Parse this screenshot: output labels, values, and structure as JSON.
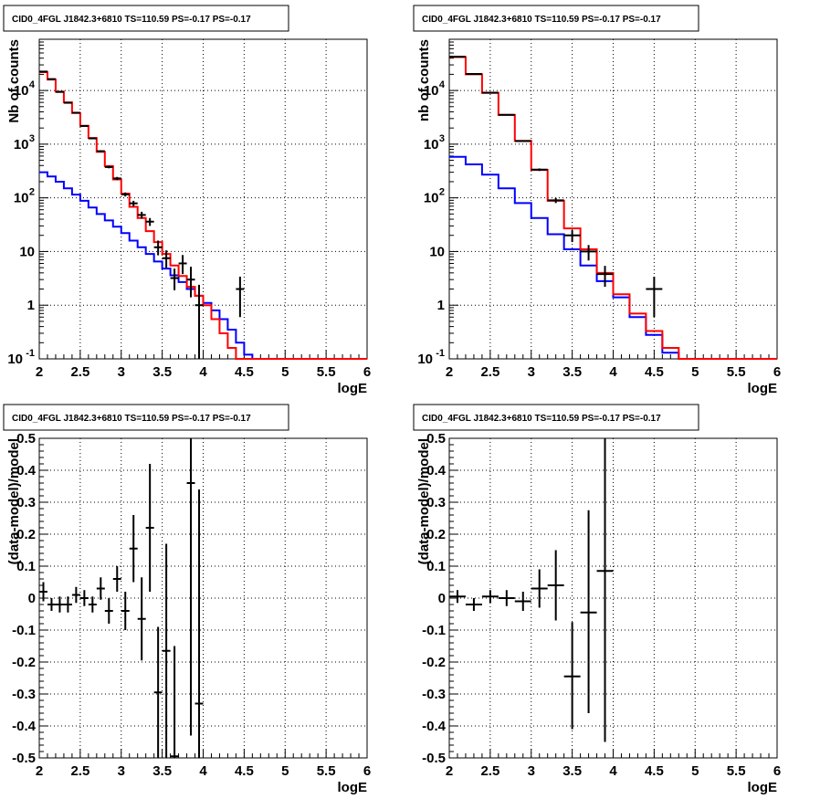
{
  "panels": [
    {
      "title": "CID0_4FGL J1842.3+6810 TS=110.59 PS=-0.17 PS=-0.17"
    },
    {
      "title": "CID0_4FGL J1842.3+6810 TS=110.59 PS=-0.17 PS=-0.17"
    },
    {
      "title": "CID0_4FGL J1842.3+6810 TS=110.59 PS=-0.17 PS=-0.17"
    },
    {
      "title": "CID0_4FGL J1842.3+6810 TS=110.59 PS=-0.17 PS=-0.17"
    }
  ],
  "colors": {
    "total_model": "#ff0000",
    "component_model": "#0000ff",
    "data": "#000000",
    "grid": "#000000",
    "title_border": "#000000"
  },
  "chart_data": [
    {
      "type": "line",
      "title": "CID0_4FGL J1842.3+6810 TS=110.59 PS=-0.17 PS=-0.17",
      "xlabel": "logE",
      "ylabel": "Nb of counts",
      "xlim": [
        2,
        6
      ],
      "ylim": [
        0.1,
        90000
      ],
      "yscale": "log",
      "grid": true,
      "x_ticks": [
        "2",
        "2.5",
        "3",
        "3.5",
        "4",
        "4.5",
        "5",
        "5.5",
        "6"
      ],
      "y_ticks": [
        "10^-1",
        "1",
        "10",
        "10^2",
        "10^3",
        "10^4"
      ],
      "bin_edges": [
        2.0,
        2.1,
        2.2,
        2.3,
        2.4,
        2.5,
        2.6,
        2.7,
        2.8,
        2.9,
        3.0,
        3.1,
        3.2,
        3.3,
        3.4,
        3.5,
        3.6,
        3.7,
        3.8,
        3.9,
        4.0,
        4.1,
        4.2,
        4.3,
        4.4,
        4.5,
        4.6,
        4.7,
        4.8,
        4.9,
        5.0,
        5.1,
        5.2,
        5.3,
        5.4,
        5.5,
        5.6,
        5.7,
        5.8,
        5.9,
        6.0
      ],
      "series": [
        {
          "kind": "step",
          "values": [
            22000,
            16000,
            9500,
            6000,
            3800,
            2200,
            1300,
            720,
            390,
            220,
            120,
            68,
            42,
            24,
            15,
            9,
            5.5,
            3.5,
            2.2,
            1.5,
            1,
            0.55,
            0.3,
            0.16,
            0.1,
            0.1,
            0.1,
            0.1,
            0.1,
            0.1,
            0.1,
            0.1,
            0.1,
            0.1,
            0.1,
            0.1,
            0.1,
            0.1,
            0.1,
            0.1
          ]
        },
        {
          "kind": "step",
          "values": [
            300,
            250,
            200,
            150,
            115,
            88,
            66,
            50,
            38,
            29,
            22,
            16,
            12,
            9,
            6.5,
            4.8,
            3.6,
            2.7,
            2,
            1.5,
            1.1,
            0.8,
            0.55,
            0.35,
            0.2,
            0.12,
            0.1,
            0.1,
            0.1,
            0.1,
            0.1,
            0.1,
            0.1,
            0.1,
            0.1,
            0.1,
            0.1,
            0.1,
            0.1,
            0.1
          ]
        },
        {
          "kind": "points",
          "x": [
            2.05,
            2.15,
            2.25,
            2.35,
            2.45,
            2.55,
            2.65,
            2.75,
            2.85,
            2.95,
            3.05,
            3.15,
            3.25,
            3.35,
            3.45,
            3.55,
            3.65,
            3.75,
            3.85,
            3.95,
            4.45
          ],
          "y": [
            22500,
            16300,
            9400,
            5900,
            3850,
            2180,
            1280,
            740,
            375,
            230,
            116,
            79,
            48,
            36,
            12,
            7.5,
            3.2,
            6,
            3,
            1,
            2
          ],
          "ylo": [
            22300,
            16100,
            9300,
            5820,
            3790,
            2130,
            1240,
            710,
            355,
            215,
            106,
            70,
            41,
            30,
            8.5,
            5,
            1.9,
            3.8,
            1.4,
            0.09,
            0.6
          ],
          "yhi": [
            22800,
            16500,
            9600,
            6000,
            3910,
            2230,
            1320,
            770,
            395,
            245,
            126,
            88,
            55,
            42,
            16,
            10.5,
            4.8,
            8.6,
            5.2,
            2.4,
            3.4
          ]
        }
      ]
    },
    {
      "type": "line",
      "title": "CID0_4FGL J1842.3+6810 TS=110.59 PS=-0.17 PS=-0.17",
      "xlabel": "logE",
      "ylabel": "nb of counts",
      "xlim": [
        2,
        6
      ],
      "ylim": [
        0.1,
        90000
      ],
      "yscale": "log",
      "grid": true,
      "x_ticks": [
        "2",
        "2.5",
        "3",
        "3.5",
        "4",
        "4.5",
        "5",
        "5.5",
        "6"
      ],
      "y_ticks": [
        "10^-1",
        "1",
        "10",
        "10^2",
        "10^3",
        "10^4"
      ],
      "bin_edges": [
        2.0,
        2.2,
        2.4,
        2.6,
        2.8,
        3.0,
        3.2,
        3.4,
        3.6,
        3.8,
        4.0,
        4.2,
        4.4,
        4.6,
        4.8,
        5.0,
        5.2,
        5.4,
        5.6,
        5.8,
        6.0
      ],
      "series": [
        {
          "kind": "step",
          "values": [
            42000,
            20000,
            9000,
            3500,
            1150,
            330,
            88,
            27,
            11,
            4,
            1.6,
            0.7,
            0.33,
            0.16,
            0.1,
            0.1,
            0.1,
            0.1,
            0.1,
            0.1
          ]
        },
        {
          "kind": "step",
          "values": [
            580,
            420,
            270,
            150,
            80,
            42,
            21,
            11,
            5.5,
            2.8,
            1.4,
            0.6,
            0.28,
            0.13,
            0.1,
            0.1,
            0.1,
            0.1,
            0.1,
            0.1
          ]
        },
        {
          "kind": "points",
          "x": [
            2.1,
            2.3,
            2.5,
            2.7,
            2.9,
            3.1,
            3.3,
            3.5,
            3.7,
            3.9,
            4.5
          ],
          "y": [
            42500,
            20300,
            9100,
            3520,
            1140,
            335,
            90,
            20,
            10,
            3.8,
            2
          ],
          "ylo": [
            42300,
            20100,
            9000,
            3470,
            1110,
            317,
            80,
            15,
            6.8,
            2.2,
            0.6
          ],
          "yhi": [
            42700,
            20500,
            9200,
            3570,
            1170,
            353,
            100,
            25,
            13.2,
            5.4,
            3.4
          ]
        }
      ]
    },
    {
      "type": "scatter",
      "title": "CID0_4FGL J1842.3+6810 TS=110.59 PS=-0.17 PS=-0.17",
      "xlabel": "logE",
      "ylabel": "(data-model)/model",
      "xlim": [
        2,
        6
      ],
      "ylim": [
        -0.5,
        0.5
      ],
      "grid": true,
      "x_ticks": [
        "2",
        "2.5",
        "3",
        "3.5",
        "4",
        "4.5",
        "5",
        "5.5",
        "6"
      ],
      "y_ticks": [
        "-0.5",
        "-0.4",
        "-0.3",
        "-0.2",
        "-0.1",
        "0",
        "0.1",
        "0.2",
        "0.3",
        "0.4",
        "0.5"
      ],
      "points": {
        "x": [
          2.05,
          2.15,
          2.25,
          2.35,
          2.45,
          2.55,
          2.65,
          2.75,
          2.85,
          2.95,
          3.05,
          3.15,
          3.25,
          3.35,
          3.45,
          3.55,
          3.65,
          3.85,
          3.95
        ],
        "y": [
          0.02,
          -0.02,
          -0.02,
          -0.02,
          0.01,
          0,
          -0.02,
          0.03,
          -0.04,
          0.06,
          -0.04,
          0.155,
          -0.065,
          0.22,
          -0.295,
          -0.165,
          -0.495,
          0.36,
          -0.33
        ],
        "ylo": [
          -0.01,
          -0.04,
          -0.045,
          -0.045,
          -0.015,
          -0.025,
          -0.045,
          -0.005,
          -0.08,
          0.02,
          -0.1,
          0.05,
          -0.195,
          0.02,
          -0.5,
          -0.5,
          -0.5,
          -0.43,
          -0.5
        ],
        "yhi": [
          0.05,
          0,
          0.005,
          0.005,
          0.035,
          0.025,
          0.005,
          0.065,
          0,
          0.1,
          0.02,
          0.26,
          0.065,
          0.42,
          -0.09,
          0.17,
          -0.15,
          0.5,
          0.34
        ]
      }
    },
    {
      "type": "scatter",
      "title": "CID0_4FGL J1842.3+6810 TS=110.59 PS=-0.17 PS=-0.17",
      "xlabel": "logE",
      "ylabel": "(data-model)/model",
      "xlim": [
        2,
        6
      ],
      "ylim": [
        -0.5,
        0.5
      ],
      "grid": true,
      "x_ticks": [
        "2",
        "2.5",
        "3",
        "3.5",
        "4",
        "4.5",
        "5",
        "5.5",
        "6"
      ],
      "y_ticks": [
        "-0.5",
        "-0.4",
        "-0.3",
        "-0.2",
        "-0.1",
        "0",
        "0.1",
        "0.2",
        "0.3",
        "0.4",
        "0.5"
      ],
      "points": {
        "x": [
          2.1,
          2.3,
          2.5,
          2.7,
          2.9,
          3.1,
          3.3,
          3.5,
          3.7,
          3.9
        ],
        "y": [
          0.005,
          -0.02,
          0.005,
          0,
          -0.01,
          0.03,
          0.04,
          -0.245,
          -0.045,
          0.085
        ],
        "ylo": [
          -0.015,
          -0.04,
          -0.015,
          -0.025,
          -0.04,
          -0.03,
          -0.07,
          -0.41,
          -0.36,
          -0.45
        ],
        "yhi": [
          0.025,
          0,
          0.025,
          0.025,
          0.02,
          0.09,
          0.15,
          -0.075,
          0.275,
          0.5
        ]
      }
    }
  ]
}
